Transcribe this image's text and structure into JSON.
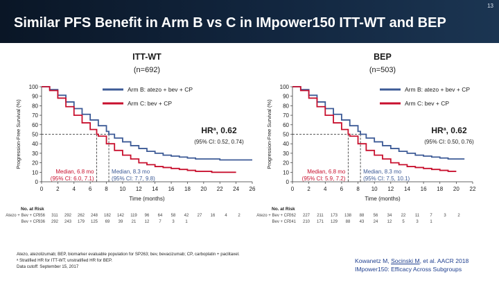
{
  "slide_number": "13",
  "title": "Similar PFS Benefit in Arm B vs C in IMpower150 ITT-WT and BEP",
  "colors": {
    "armB": "#3c5a96",
    "armC": "#c8102e",
    "header": "#0d1b2e",
    "text": "#1a1a1a"
  },
  "chart_data": [
    {
      "type": "line",
      "panel_title": "ITT-WT",
      "panel_n": "(n=692)",
      "xlabel": "Time (months)",
      "ylabel": "Progression-Free Survival (%)",
      "xlim": [
        0,
        26
      ],
      "ylim": [
        0,
        100
      ],
      "x_ticks": [
        "0",
        "2",
        "4",
        "6",
        "8",
        "10",
        "12",
        "14",
        "16",
        "18",
        "20",
        "22",
        "24",
        "26"
      ],
      "y_ticks": [
        "0",
        "10",
        "20",
        "30",
        "40",
        "50",
        "60",
        "70",
        "80",
        "90",
        "100"
      ],
      "legend": [
        "Arm B: atezo + bev + CP",
        "Arm C: bev + CP"
      ],
      "hr_label": "HR",
      "hr_sup": "a",
      "hr_value": ", 0.62",
      "hr_ci": "(95% CI: 0.52, 0.74)",
      "median_c_label": [
        "Median, 6.8 mo",
        "(95% CI: 6.0, 7.1)"
      ],
      "median_b_label": [
        "Median, 8.3 mo",
        "(95% CI: 7.7, 9.8)"
      ],
      "median_b": 8.3,
      "median_c": 6.8,
      "series": [
        {
          "name": "Arm B: atezo + bev + CP",
          "x": [
            0,
            1,
            2,
            3,
            4,
            5,
            6,
            7,
            8,
            8.3,
            9,
            10,
            11,
            12,
            13,
            14,
            15,
            16,
            17,
            18,
            19,
            20,
            21,
            22,
            23,
            24,
            25,
            26
          ],
          "y": [
            100,
            97,
            91,
            84,
            77,
            71,
            65,
            59,
            53,
            50,
            46,
            42,
            38,
            35,
            32,
            30,
            28,
            27,
            26,
            25,
            24,
            24,
            24,
            23,
            23,
            23,
            23,
            23
          ]
        },
        {
          "name": "Arm C: bev + CP",
          "x": [
            0,
            1,
            2,
            3,
            4,
            5,
            6,
            6.8,
            7,
            8,
            9,
            10,
            11,
            12,
            13,
            14,
            15,
            16,
            17,
            18,
            19,
            20,
            21,
            22,
            23,
            24
          ],
          "y": [
            100,
            96,
            88,
            79,
            70,
            62,
            55,
            50,
            48,
            40,
            33,
            28,
            24,
            20,
            18,
            16,
            15,
            14,
            13,
            12,
            11,
            11,
            10,
            10,
            10,
            10
          ]
        }
      ],
      "at_risk": {
        "title": "No. at Risk",
        "rows": [
          {
            "label": "Atezo + Bev + CP",
            "values": [
              "356",
              "311",
              "292",
              "262",
              "248",
              "182",
              "142",
              "119",
              "96",
              "64",
              "58",
              "42",
              "27",
              "16",
              "4",
              "2"
            ]
          },
          {
            "label": "Bev + CP",
            "values": [
              "336",
              "292",
              "243",
              "179",
              "125",
              "69",
              "39",
              "21",
              "12",
              "7",
              "3",
              "1"
            ]
          }
        ]
      }
    },
    {
      "type": "line",
      "panel_title": "BEP",
      "panel_n": "(n=503)",
      "xlabel": "Time (months)",
      "ylabel": "Progression-Free Survival (%)",
      "xlim": [
        0,
        22
      ],
      "ylim": [
        0,
        100
      ],
      "x_ticks": [
        "0",
        "2",
        "4",
        "6",
        "8",
        "10",
        "12",
        "14",
        "16",
        "18",
        "20",
        "22"
      ],
      "y_ticks": [
        "0",
        "10",
        "20",
        "30",
        "40",
        "50",
        "60",
        "70",
        "80",
        "90",
        "100"
      ],
      "legend": [
        "Arm B: atezo + bev + CP",
        "Arm C: bev + CP"
      ],
      "hr_label": "HR",
      "hr_sup": "a",
      "hr_value": ", 0.62",
      "hr_ci": "(95% CI: 0.50, 0.76)",
      "median_c_label": [
        "Median, 6.8 mo",
        "(95% CI: 5.9, 7.2)"
      ],
      "median_b_label": [
        "Median, 8.3 mo",
        "(95% CI: 7.5, 10.1)"
      ],
      "median_b": 8.3,
      "median_c": 6.8,
      "series": [
        {
          "name": "Arm B: atezo + bev + CP",
          "x": [
            0,
            1,
            2,
            3,
            4,
            5,
            6,
            7,
            8,
            8.3,
            9,
            10,
            11,
            12,
            13,
            14,
            15,
            16,
            17,
            18,
            19,
            20,
            21
          ],
          "y": [
            100,
            97,
            91,
            84,
            77,
            71,
            65,
            59,
            53,
            50,
            46,
            42,
            38,
            35,
            32,
            30,
            28,
            27,
            26,
            25,
            24,
            24,
            24
          ]
        },
        {
          "name": "Arm C: bev + CP",
          "x": [
            0,
            1,
            2,
            3,
            4,
            5,
            6,
            6.8,
            7,
            8,
            9,
            10,
            11,
            12,
            13,
            14,
            15,
            16,
            17,
            18,
            19,
            20
          ],
          "y": [
            100,
            96,
            88,
            79,
            70,
            62,
            55,
            50,
            48,
            40,
            33,
            28,
            24,
            20,
            18,
            16,
            15,
            14,
            13,
            12,
            11,
            11
          ]
        }
      ],
      "at_risk": {
        "title": "No. at Risk",
        "rows": [
          {
            "label": "Atezo + Bev + CP",
            "values": [
              "262",
              "227",
              "211",
              "173",
              "138",
              "88",
              "56",
              "34",
              "22",
              "11",
              "7",
              "3",
              "2"
            ]
          },
          {
            "label": "Bev + CP",
            "values": [
              "241",
              "210",
              "171",
              "129",
              "88",
              "43",
              "24",
              "12",
              "5",
              "3",
              "1"
            ]
          }
        ]
      }
    }
  ],
  "footnotes": [
    "Atezo, atezolizumab; BEP, biomarker evaluable population for SP263; bev, bevacizumab; CP, carboplatin + paclitaxel.",
    "ᵃ Stratified HR for ITT-WT; unstratified HR for BEP.",
    "Data cutoff: September 15, 2017"
  ],
  "citation": {
    "prefix": "Kowanetz M, ",
    "underlined": "Socinski M",
    "suffix": ", et al. AACR 2018",
    "line2": "IMpower150: Efficacy Across Subgroups"
  }
}
